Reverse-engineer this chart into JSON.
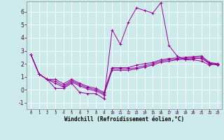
{
  "xlabel": "Windchill (Refroidissement éolien,°C)",
  "background_color": "#cceaea",
  "line_color": "#990099",
  "grid_color": "#ffffff",
  "ylim": [
    -1.5,
    6.8
  ],
  "xlim": [
    -0.5,
    23.5
  ],
  "yticks": [
    -1,
    0,
    1,
    2,
    3,
    4,
    5,
    6
  ],
  "xticks": [
    0,
    1,
    2,
    3,
    4,
    5,
    6,
    7,
    8,
    9,
    10,
    11,
    12,
    13,
    14,
    15,
    16,
    17,
    18,
    19,
    20,
    21,
    22,
    23
  ],
  "lines": [
    [
      2.7,
      1.2,
      0.8,
      0.1,
      0.1,
      0.5,
      -0.2,
      -0.3,
      -0.3,
      -0.7,
      4.6,
      3.5,
      5.2,
      6.3,
      6.1,
      5.9,
      6.7,
      3.4,
      2.6,
      2.3,
      2.3,
      2.2,
      1.9,
      2.0
    ],
    [
      2.7,
      1.2,
      0.8,
      0.5,
      0.2,
      0.6,
      0.3,
      0.05,
      -0.1,
      -0.4,
      1.5,
      1.5,
      1.5,
      1.6,
      1.75,
      1.9,
      2.1,
      2.2,
      2.3,
      2.35,
      2.4,
      2.4,
      2.0,
      1.9
    ],
    [
      2.7,
      1.2,
      0.8,
      0.65,
      0.3,
      0.7,
      0.4,
      0.15,
      0.0,
      -0.3,
      1.6,
      1.6,
      1.6,
      1.7,
      1.85,
      2.0,
      2.2,
      2.3,
      2.37,
      2.42,
      2.46,
      2.5,
      2.05,
      1.95
    ],
    [
      2.7,
      1.2,
      0.8,
      0.8,
      0.45,
      0.8,
      0.5,
      0.25,
      0.1,
      -0.2,
      1.7,
      1.7,
      1.7,
      1.9,
      2.0,
      2.1,
      2.3,
      2.4,
      2.45,
      2.5,
      2.55,
      2.6,
      2.1,
      2.0
    ]
  ]
}
